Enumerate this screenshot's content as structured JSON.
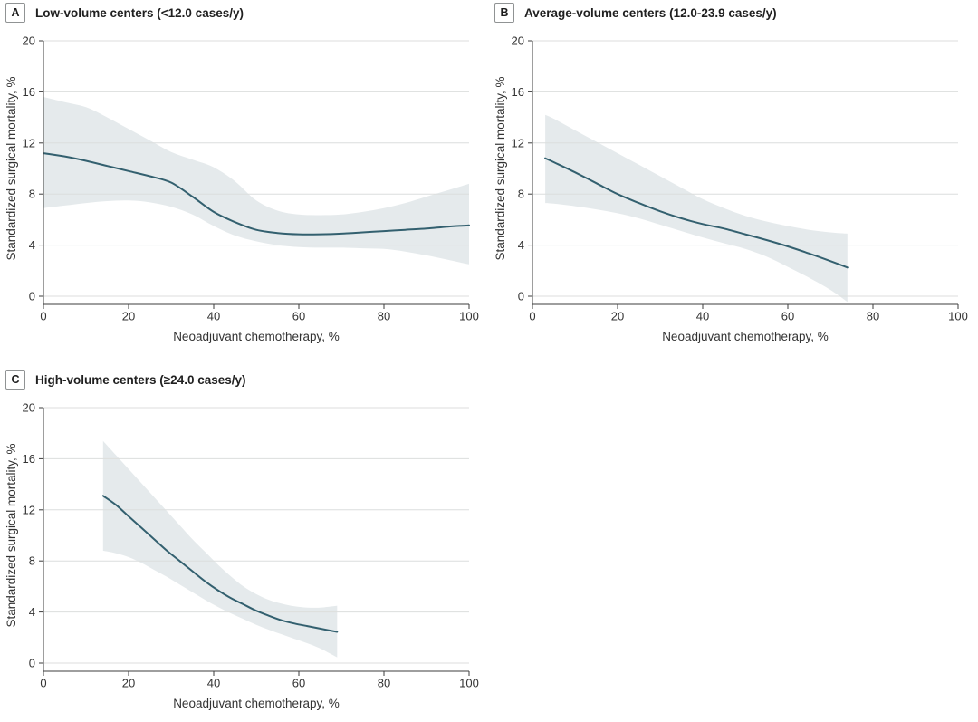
{
  "figure": {
    "background": "#ffffff"
  },
  "colors": {
    "line": "#33606F",
    "band": "#E5EAEC",
    "grid": "#DCDEDD",
    "axis": "#3D3D3D",
    "text": "#333333",
    "letter_border": "#909394"
  },
  "chart_data": [
    {
      "panel_label": "A",
      "title": "Low-volume centers (<12.0 cases/y)",
      "type": "line",
      "xlabel": "Neoadjuvant chemotherapy, %",
      "ylabel": "Standardized surgical mortality, %",
      "xlim": [
        0,
        100
      ],
      "ylim": [
        0,
        20
      ],
      "xticks": [
        0,
        20,
        40,
        60,
        80,
        100
      ],
      "yticks": [
        0,
        4,
        8,
        12,
        16,
        20
      ],
      "grid": true,
      "band_shown": true,
      "x": [
        0,
        5,
        10,
        15,
        20,
        25,
        30,
        35,
        40,
        45,
        50,
        55,
        60,
        65,
        70,
        75,
        80,
        85,
        90,
        95,
        100
      ],
      "y": [
        11.2,
        10.95,
        10.6,
        10.2,
        9.8,
        9.4,
        8.9,
        7.8,
        6.6,
        5.8,
        5.2,
        4.95,
        4.85,
        4.85,
        4.9,
        5.0,
        5.1,
        5.2,
        5.3,
        5.45,
        5.55
      ],
      "ci_upper": [
        15.6,
        15.2,
        14.8,
        14.0,
        13.1,
        12.2,
        11.3,
        10.7,
        10.1,
        9.0,
        7.5,
        6.7,
        6.4,
        6.35,
        6.4,
        6.6,
        6.9,
        7.3,
        7.8,
        8.3,
        8.8
      ],
      "ci_lower": [
        6.9,
        7.1,
        7.3,
        7.45,
        7.5,
        7.35,
        7.0,
        6.4,
        5.5,
        4.75,
        4.3,
        4.0,
        3.85,
        3.8,
        3.8,
        3.75,
        3.7,
        3.5,
        3.2,
        2.85,
        2.5
      ]
    },
    {
      "panel_label": "B",
      "title": "Average-volume centers (12.0-23.9 cases/y)",
      "type": "line",
      "xlabel": "Neoadjuvant chemotherapy, %",
      "ylabel": "Standardized surgical mortality, %",
      "xlim": [
        0,
        100
      ],
      "ylim": [
        0,
        20
      ],
      "xticks": [
        0,
        20,
        40,
        60,
        80,
        100
      ],
      "yticks": [
        0,
        4,
        8,
        12,
        16,
        20
      ],
      "grid": true,
      "band_shown": true,
      "x": [
        3,
        5,
        10,
        15,
        20,
        25,
        30,
        35,
        40,
        45,
        50,
        55,
        60,
        65,
        70,
        74
      ],
      "y": [
        10.8,
        10.5,
        9.7,
        8.85,
        8.0,
        7.3,
        6.65,
        6.1,
        5.65,
        5.3,
        4.85,
        4.4,
        3.9,
        3.35,
        2.75,
        2.25
      ],
      "ci_upper": [
        14.2,
        13.9,
        13.0,
        12.1,
        11.2,
        10.3,
        9.4,
        8.5,
        7.6,
        6.9,
        6.3,
        5.85,
        5.5,
        5.2,
        5.0,
        4.9
      ],
      "ci_lower": [
        7.3,
        7.25,
        7.05,
        6.8,
        6.5,
        6.1,
        5.6,
        5.1,
        4.6,
        4.15,
        3.7,
        3.1,
        2.3,
        1.45,
        0.5,
        -0.45
      ]
    },
    {
      "panel_label": "C",
      "title": "High-volume centers (≥24.0 cases/y)",
      "type": "line",
      "xlabel": "Neoadjuvant chemotherapy, %",
      "ylabel": "Standardized surgical mortality, %",
      "xlim": [
        0,
        100
      ],
      "ylim": [
        0,
        20
      ],
      "xticks": [
        0,
        20,
        40,
        60,
        80,
        100
      ],
      "yticks": [
        0,
        4,
        8,
        12,
        16,
        20
      ],
      "grid": true,
      "band_shown": true,
      "x": [
        14,
        17,
        20,
        23,
        26,
        29,
        32,
        35,
        38,
        41,
        44,
        47,
        50,
        53,
        56,
        59,
        62,
        65,
        69
      ],
      "y": [
        13.1,
        12.4,
        11.5,
        10.6,
        9.7,
        8.8,
        8.0,
        7.2,
        6.4,
        5.7,
        5.1,
        4.6,
        4.1,
        3.7,
        3.35,
        3.1,
        2.9,
        2.7,
        2.45
      ],
      "ci_upper": [
        17.4,
        16.3,
        15.2,
        14.1,
        13.0,
        11.9,
        10.8,
        9.7,
        8.7,
        7.7,
        6.8,
        6.0,
        5.4,
        4.95,
        4.65,
        4.45,
        4.35,
        4.35,
        4.5
      ],
      "ci_lower": [
        8.8,
        8.6,
        8.3,
        7.85,
        7.3,
        6.75,
        6.15,
        5.55,
        4.95,
        4.4,
        3.9,
        3.45,
        3.0,
        2.6,
        2.25,
        1.9,
        1.55,
        1.15,
        0.45
      ]
    }
  ]
}
